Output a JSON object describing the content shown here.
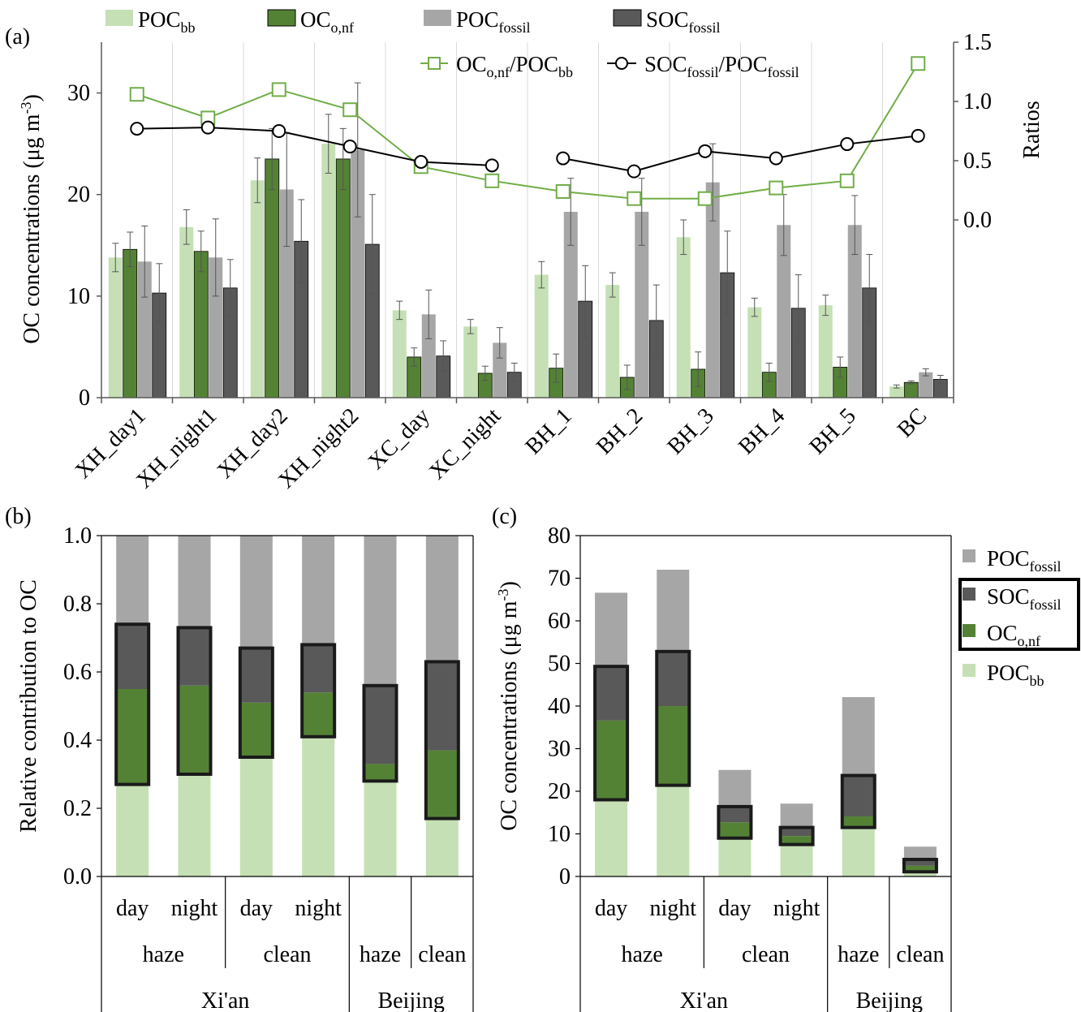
{
  "colors": {
    "poc_bb": "#c5e0b4",
    "oc_onf": "#548235",
    "poc_fossil": "#a6a6a6",
    "soc_fossil": "#595959",
    "ratio_oc": "#70ad47",
    "ratio_soc": "#000000",
    "box": "#1a1a1a",
    "grid": "#d9d9d9",
    "axis": "#595959"
  },
  "legend": {
    "poc_bb": {
      "main": "POC",
      "sub": "bb"
    },
    "oc_onf": {
      "main": "OC",
      "sub": "o,nf"
    },
    "poc_fossil": {
      "main": "POC",
      "sub": "fossil"
    },
    "soc_fossil": {
      "main": "SOC",
      "sub": "fossil"
    },
    "ratio_oc": {
      "a": "OC",
      "a_sub": "o,nf",
      "b": "/POC",
      "b_sub": "bb"
    },
    "ratio_soc": {
      "a": "SOC",
      "a_sub": "fossil",
      "b": "/POC",
      "b_sub": "fossil"
    }
  },
  "chart_data": [
    {
      "panel": "(a)",
      "type": "bar",
      "ylabel": "OC concentrations (μg m",
      "ylabel_sup": "-3",
      "ylabel_end": ")",
      "y2label": "Ratios",
      "ylim": [
        0,
        35
      ],
      "yticks": [
        "0",
        "10",
        "20",
        "30"
      ],
      "y2lim": [
        -1.5,
        1.5
      ],
      "y2ticks": [
        "0.0",
        "0.5",
        "1.0",
        "1.5"
      ],
      "grid": true,
      "legend_position": "top",
      "categories": [
        "XH_day1",
        "XH_night1",
        "XH_day2",
        "XH_night2",
        "XC_day",
        "XC_night",
        "BH_1",
        "BH_2",
        "BH_3",
        "BH_4",
        "BH_5",
        "BC"
      ],
      "series": [
        {
          "name": "POC_bb",
          "values": [
            13.8,
            16.8,
            21.4,
            25.0,
            8.6,
            7.0,
            12.1,
            11.1,
            15.8,
            8.9,
            9.1,
            1.1
          ],
          "errors": [
            1.4,
            1.7,
            2.2,
            2.9,
            0.9,
            0.7,
            1.3,
            1.2,
            1.7,
            0.9,
            1.0,
            0.15
          ]
        },
        {
          "name": "OC_o,nf",
          "values": [
            14.6,
            14.4,
            23.5,
            23.5,
            4.0,
            2.4,
            2.9,
            2.0,
            2.8,
            2.5,
            3.0,
            1.5
          ],
          "errors": [
            1.7,
            2.0,
            3.0,
            3.0,
            0.9,
            0.7,
            1.4,
            1.2,
            1.7,
            0.9,
            1.0,
            0.15
          ]
        },
        {
          "name": "POC_fossil",
          "values": [
            13.4,
            13.8,
            20.5,
            24.4,
            8.2,
            5.4,
            18.3,
            18.3,
            21.2,
            17.0,
            17.0,
            2.5
          ],
          "errors": [
            3.5,
            3.8,
            5.6,
            6.6,
            2.4,
            1.5,
            3.3,
            3.3,
            3.8,
            3.0,
            2.9,
            0.35
          ]
        },
        {
          "name": "SOC_fossil",
          "values": [
            10.3,
            10.8,
            15.4,
            15.1,
            4.1,
            2.5,
            9.5,
            7.6,
            12.3,
            8.8,
            10.8,
            1.8
          ],
          "errors": [
            2.9,
            2.8,
            4.1,
            4.9,
            1.5,
            0.9,
            3.5,
            3.5,
            4.1,
            3.3,
            3.3,
            0.4
          ]
        }
      ],
      "ratio_series": [
        {
          "name": "OC_o,nf/POC_bb",
          "values": [
            1.06,
            0.86,
            1.1,
            0.93,
            0.45,
            0.33,
            0.24,
            0.18,
            0.18,
            0.27,
            0.33,
            1.32
          ]
        },
        {
          "name": "SOC_fossil/POC_fossil",
          "values": [
            0.77,
            0.78,
            0.75,
            0.62,
            0.49,
            0.46,
            0.52,
            0.41,
            0.58,
            0.52,
            0.64,
            0.71
          ],
          "gap_after_index": 5
        }
      ]
    },
    {
      "panel": "(b)",
      "type": "bar",
      "stacked": true,
      "ylabel": "Relative contribution to OC",
      "ylim": [
        0,
        1
      ],
      "yticks": [
        "0.0",
        "0.2",
        "0.4",
        "0.6",
        "0.8",
        "1.0"
      ],
      "categories": [
        "day",
        "night",
        "day",
        "night",
        "",
        ""
      ],
      "groups": [
        "haze",
        "clean",
        "haze",
        "clean"
      ],
      "regions": [
        "Xi'an",
        "Beijing"
      ],
      "series": [
        {
          "name": "POC_bb",
          "values": [
            0.27,
            0.3,
            0.35,
            0.41,
            0.28,
            0.17
          ]
        },
        {
          "name": "OC_o,nf",
          "values": [
            0.28,
            0.26,
            0.16,
            0.13,
            0.05,
            0.2
          ]
        },
        {
          "name": "SOC_fossil",
          "values": [
            0.19,
            0.17,
            0.16,
            0.14,
            0.23,
            0.26
          ]
        },
        {
          "name": "POC_fossil",
          "values": [
            0.26,
            0.27,
            0.33,
            0.32,
            0.44,
            0.37
          ]
        }
      ]
    },
    {
      "panel": "(c)",
      "type": "bar",
      "stacked": true,
      "ylabel": "OC concentrations (μg m",
      "ylabel_sup": "-3",
      "ylabel_end": ")",
      "ylim": [
        0,
        80
      ],
      "yticks": [
        "0",
        "10",
        "20",
        "30",
        "40",
        "50",
        "60",
        "70",
        "80"
      ],
      "legend_position": "right",
      "categories": [
        "day",
        "night",
        "day",
        "night",
        "",
        ""
      ],
      "groups": [
        "haze",
        "clean",
        "haze",
        "clean"
      ],
      "regions": [
        "Xi'an",
        "Beijing"
      ],
      "series": [
        {
          "name": "POC_bb",
          "values": [
            18.0,
            21.4,
            9.0,
            7.5,
            11.5,
            1.1
          ]
        },
        {
          "name": "OC_o,nf",
          "values": [
            18.6,
            18.6,
            3.7,
            2.0,
            2.6,
            1.4
          ]
        },
        {
          "name": "SOC_fossil",
          "values": [
            12.7,
            12.8,
            3.7,
            2.0,
            9.6,
            1.5
          ]
        },
        {
          "name": "POC_fossil",
          "values": [
            17.3,
            19.2,
            8.6,
            5.6,
            18.4,
            3.0
          ]
        }
      ]
    }
  ]
}
